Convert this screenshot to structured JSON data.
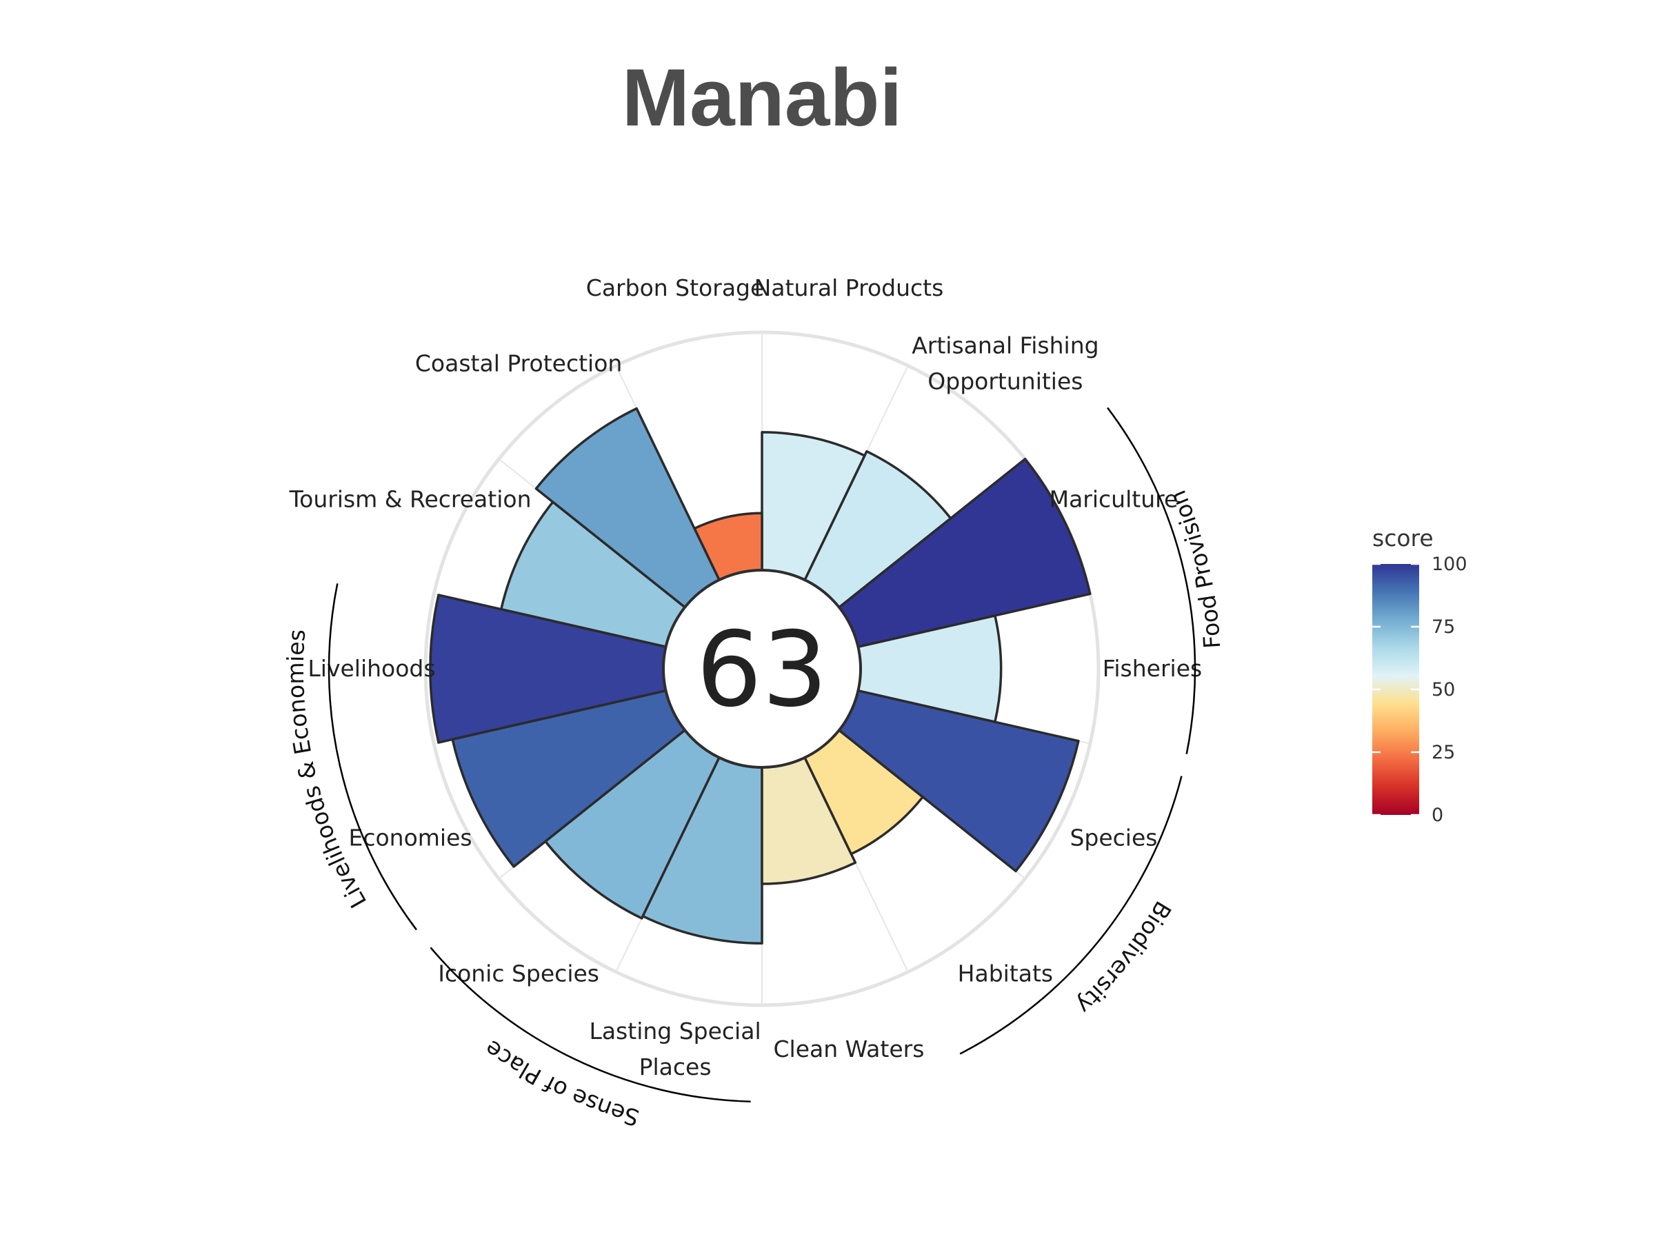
{
  "chart_data": {
    "type": "polar-bar",
    "title": "Manabi",
    "overall_score": "63",
    "goals": [
      {
        "label": "Fisheries",
        "score": 59
      },
      {
        "label": "Mariculture",
        "score": 100
      },
      {
        "label": "Artisanal Fishing Opportunities",
        "score": 60
      },
      {
        "label": "Natural Products",
        "score": 58
      },
      {
        "label": "Carbon Storage",
        "score": 24
      },
      {
        "label": "Coastal Protection",
        "score": 80
      },
      {
        "label": "Tourism & Recreation",
        "score": 71
      },
      {
        "label": "Livelihoods",
        "score": 98
      },
      {
        "label": "Economies",
        "score": 92
      },
      {
        "label": "Iconic Species",
        "score": 75
      },
      {
        "label": "Lasting Special Places",
        "score": 74
      },
      {
        "label": "Clean Waters",
        "score": 49
      },
      {
        "label": "Habitats",
        "score": 45
      },
      {
        "label": "Species",
        "score": 95
      }
    ],
    "groups": [
      {
        "name": "Food Provision"
      },
      {
        "name": "Biodiversity"
      },
      {
        "name": "Sense of Place"
      },
      {
        "name": "Livelihoods & Economies"
      }
    ],
    "legend": {
      "title": "score",
      "ticks": [
        "0",
        "25",
        "50",
        "75",
        "100"
      ],
      "colors": [
        "#a50026",
        "#d73027",
        "#f46d43",
        "#fdae61",
        "#fee090",
        "#e0f3f8",
        "#abd9e9",
        "#74add1",
        "#4575b4",
        "#313695"
      ]
    },
    "ylim": [
      0,
      100
    ]
  }
}
